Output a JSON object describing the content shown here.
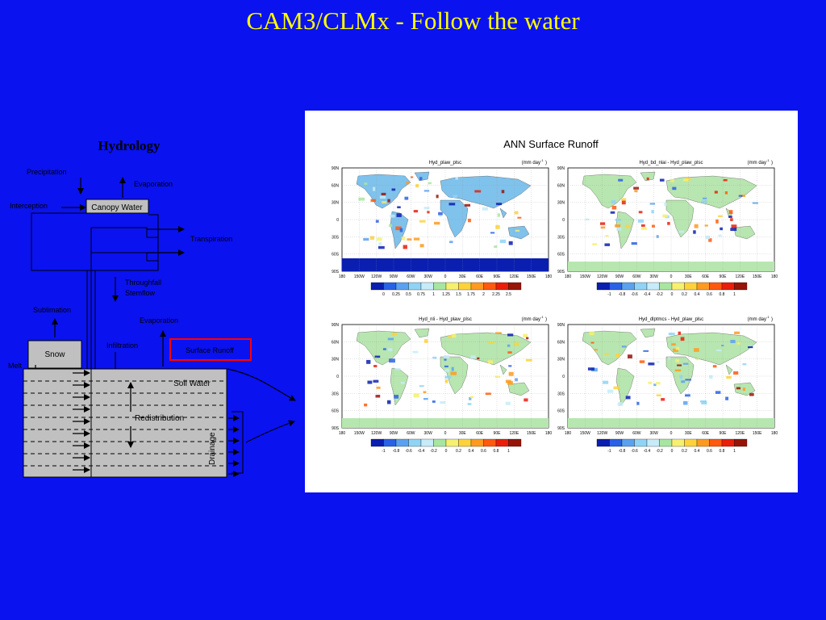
{
  "slide": {
    "title": "CAM3/CLMx - Follow the water"
  },
  "hydrology": {
    "title": "Hydrology",
    "labels": {
      "precipitation": "Precipitation",
      "evaporation_canopy": "Evaporation",
      "interception": "Interception",
      "canopy_water": "Canopy Water",
      "transpiration": "Transpiration",
      "throughfall": "Throughfall",
      "stemflow": "Stemflow",
      "sublimation": "Sublimation",
      "evaporation_ground": "Evaporation",
      "infiltration": "Infiltration",
      "surface_runoff": "Surface Runoff",
      "snow": "Snow",
      "melt": "Melt",
      "soil_water": "Soil Water",
      "redistribution": "Redistribution",
      "drainage": "Drainage"
    },
    "colors": {
      "box_fill": "#c0c0c0",
      "highlight_border": "#ff0000",
      "title": "#000000"
    }
  },
  "figure": {
    "title": "ANN Surface Runoff",
    "units": "(mm day",
    "units_exp": "-1",
    "units_close": ")",
    "panels": [
      {
        "title": "Hyd_plaw_plsc"
      },
      {
        "title": "Hyd_bd_nlai - Hyd_plaw_plsc"
      },
      {
        "title": "Hyd_nli - Hyd_plaw_plsc"
      },
      {
        "title": "Hyd_dlptmcs - Hyd_plaw_plsc"
      }
    ],
    "lat_ticks": [
      "90N",
      "60N",
      "30N",
      "0",
      "30S",
      "60S",
      "90S"
    ],
    "lon_ticks": [
      "180",
      "150W",
      "120W",
      "90W",
      "60W",
      "30W",
      "0",
      "30E",
      "60E",
      "90E",
      "120E",
      "150E",
      "180"
    ],
    "colorbars": {
      "absolute": {
        "labels": [
          "0",
          "0.25",
          "0.5",
          "0.75",
          "1",
          "1.25",
          "1.5",
          "1.75",
          "2",
          "2.25",
          "2.5"
        ],
        "colors": [
          "#0a1fb0",
          "#2a62e6",
          "#5aa2f0",
          "#8fd4f6",
          "#c6ecf8",
          "#a8e6a0",
          "#f6f070",
          "#ffd23a",
          "#ff9a1e",
          "#ff5a0e",
          "#e81e0a",
          "#981408"
        ]
      },
      "difference": {
        "labels": [
          "-1",
          "-0.8",
          "-0.6",
          "-0.4",
          "-0.2",
          "0",
          "0.2",
          "0.4",
          "0.6",
          "0.8",
          "1"
        ],
        "colors": [
          "#0a1fb0",
          "#2a62e6",
          "#5aa2f0",
          "#8fd4f6",
          "#c6ecf8",
          "#a8e6a0",
          "#f6f070",
          "#ffd23a",
          "#ff9a1e",
          "#ff5a0e",
          "#e81e0a",
          "#981408"
        ]
      }
    },
    "map_colors": {
      "ocean": "#ffffff",
      "land_base_abs": "#7fc2ec",
      "land_base_diff": "#b8e6b0",
      "antarctica_abs": "#0a1fb0"
    }
  }
}
